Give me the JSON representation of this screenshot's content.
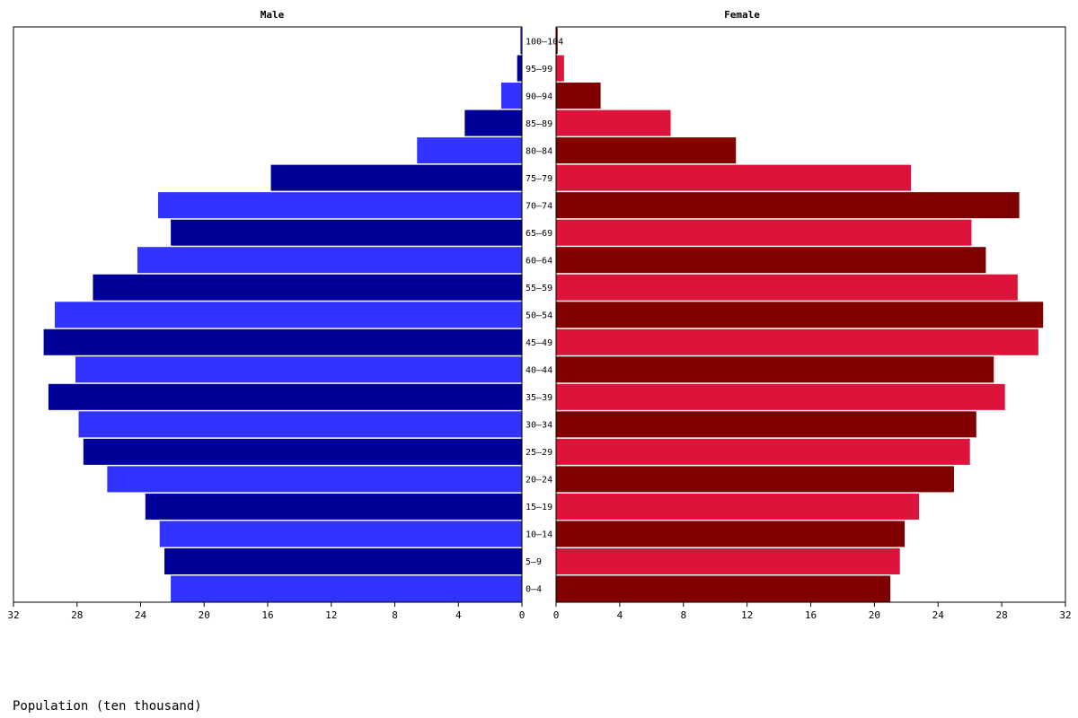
{
  "chart_data": {
    "type": "bar",
    "subtype": "population-pyramid",
    "xlabel": "Population (ten thousand)",
    "categories": [
      "0-4",
      "5-9",
      "10-14",
      "15-19",
      "20-24",
      "25-29",
      "30-34",
      "35-39",
      "40-44",
      "45-49",
      "50-54",
      "55-59",
      "60-64",
      "65-69",
      "70-74",
      "75-79",
      "80-84",
      "85-89",
      "90-94",
      "95-99",
      "100-104"
    ],
    "category_labels": [
      "0–4",
      "5–9",
      "10–14",
      "15–19",
      "20–24",
      "25–29",
      "30–34",
      "35–39",
      "40–44",
      "45–49",
      "50–54",
      "55–59",
      "60–64",
      "65–69",
      "70–74",
      "75–79",
      "80–84",
      "85–89",
      "90–94",
      "95–99",
      "100–104"
    ],
    "xlim": [
      0,
      32
    ],
    "xticks": [
      "32",
      "28",
      "24",
      "20",
      "16",
      "12",
      "8",
      "4",
      "0"
    ],
    "xticks_right": [
      "0",
      "4",
      "8",
      "12",
      "16",
      "20",
      "24",
      "28",
      "32"
    ],
    "series": [
      {
        "name": "Male",
        "colors": [
          "#3333ff",
          "#000099"
        ],
        "values": [
          22.1,
          22.5,
          22.8,
          23.7,
          26.1,
          27.6,
          27.9,
          29.8,
          28.1,
          30.1,
          29.4,
          27.0,
          24.2,
          22.1,
          22.9,
          15.8,
          6.6,
          3.6,
          1.3,
          0.3,
          0.1
        ]
      },
      {
        "name": "Female",
        "colors": [
          "#800000",
          "#dc143c"
        ],
        "values": [
          21.0,
          21.6,
          21.9,
          22.8,
          25.0,
          26.0,
          26.4,
          28.2,
          27.5,
          30.3,
          30.6,
          29.0,
          27.0,
          26.1,
          29.1,
          22.3,
          11.3,
          7.2,
          2.8,
          0.5,
          0.1
        ]
      }
    ],
    "grid": false,
    "legend": "none"
  }
}
